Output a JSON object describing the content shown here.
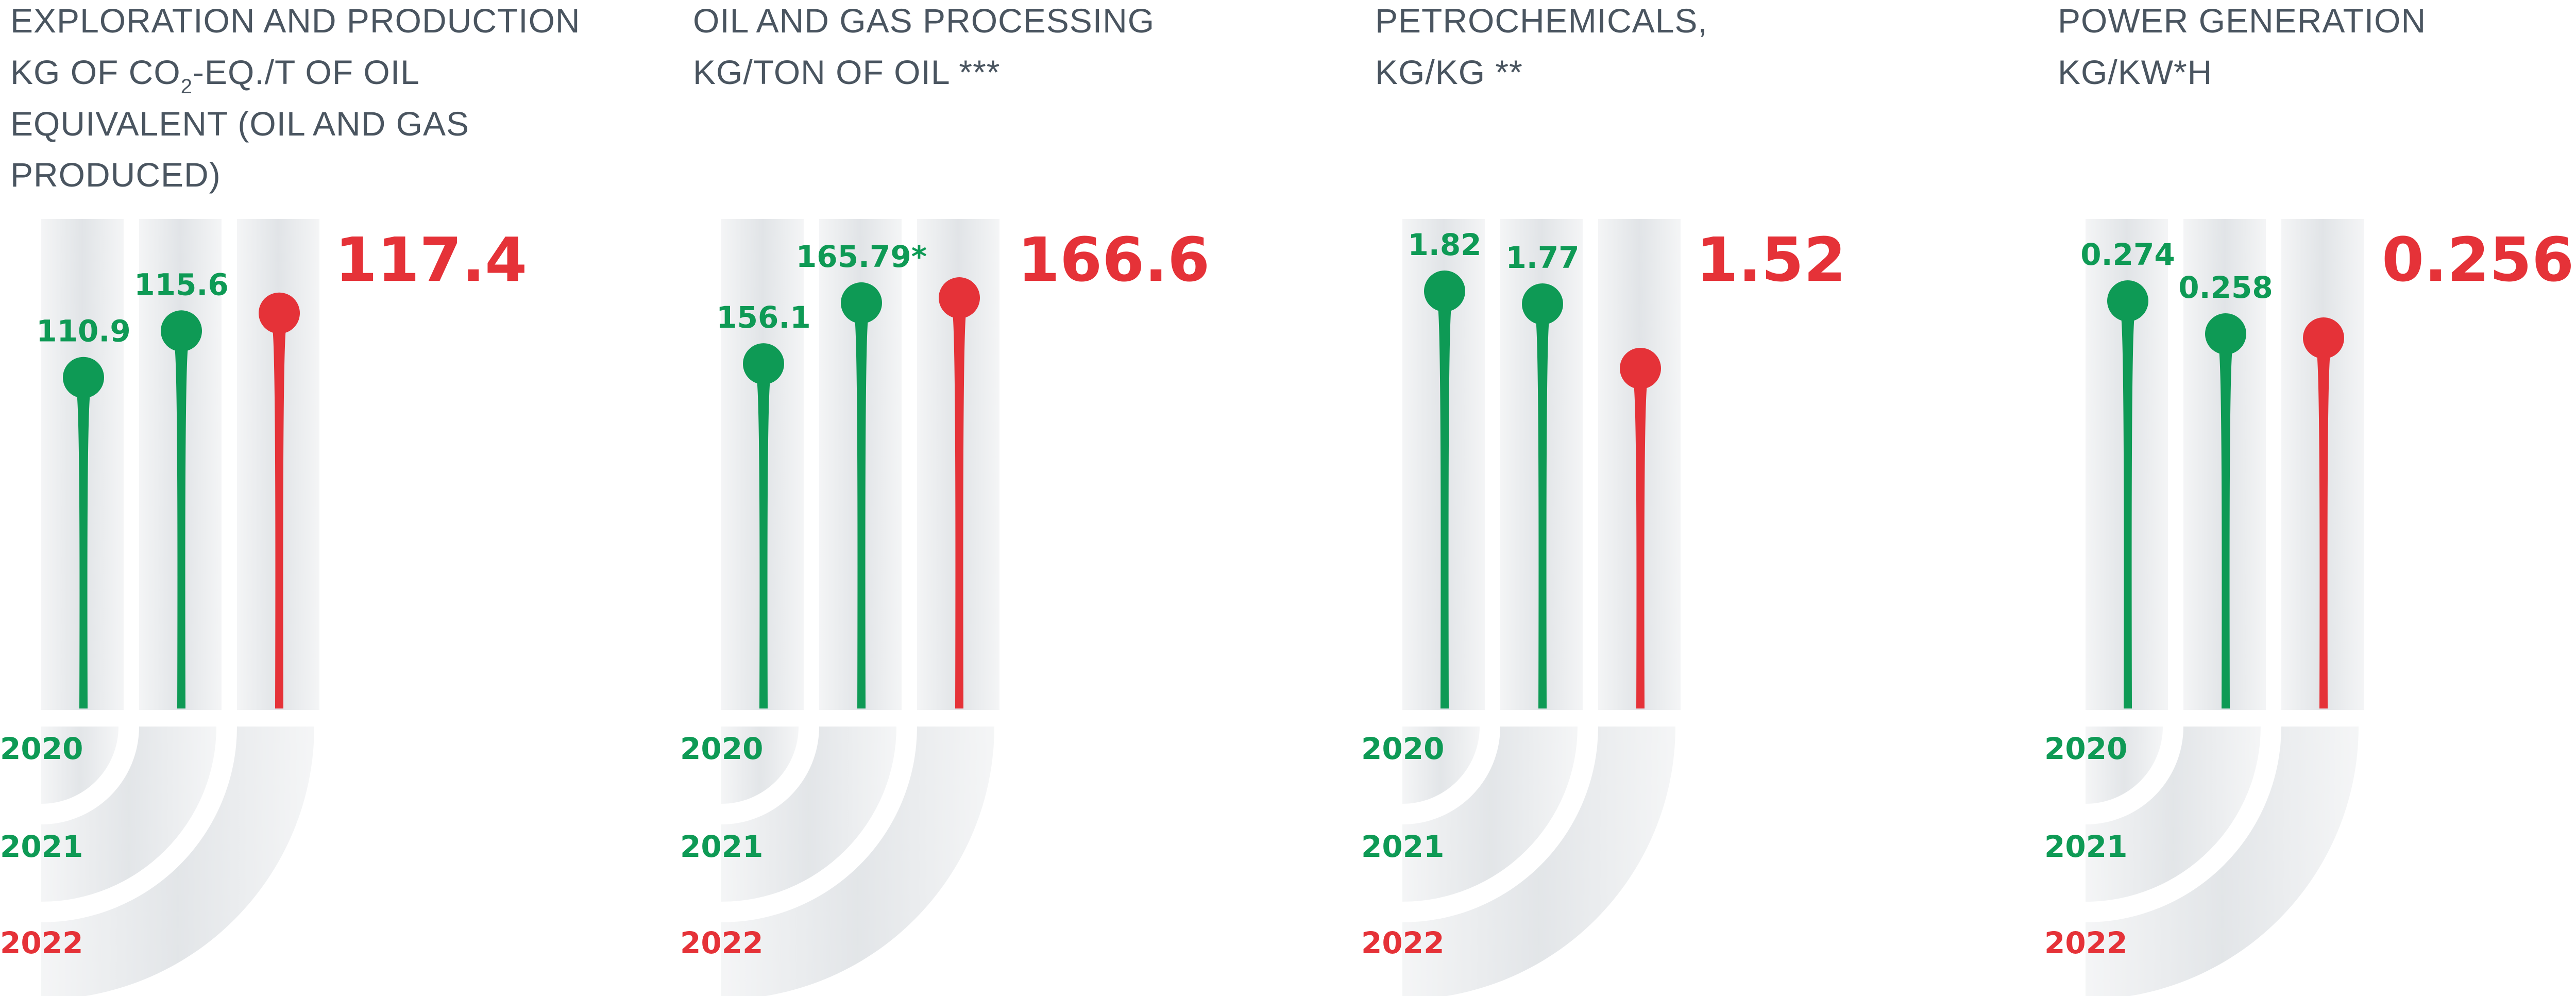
{
  "colors": {
    "green": "#0e9a55",
    "red": "#e53238",
    "title": "#4a5560",
    "track": "#e6e8ea"
  },
  "chart_data": [
    {
      "type": "lollipop",
      "title_lines": [
        "EXPLORATION AND PRODUCTION",
        "KG OF CO",
        "EQUIVALENT (OIL AND GAS",
        "PRODUCED)"
      ],
      "title_subscript": "2",
      "title_line2_tail": "-EQ./T OF OIL",
      "categories": [
        "2020",
        "2021",
        "2022"
      ],
      "values": [
        110.9,
        115.6,
        117.4
      ],
      "labels": [
        "110.9",
        "115.6",
        "117.4"
      ],
      "highlight": "117.4",
      "range": [
        97,
        123
      ]
    },
    {
      "type": "lollipop",
      "title_lines": [
        "OIL AND GAS PROCESSING",
        "KG/TON OF OIL ***"
      ],
      "categories": [
        "2020",
        "2021",
        "2022"
      ],
      "values": [
        156.1,
        165.79,
        166.6
      ],
      "labels": [
        "156.1",
        "165.79*",
        "166.6"
      ],
      "highlight": "166.6",
      "range": [
        132,
        173
      ]
    },
    {
      "type": "lollipop",
      "title_lines": [
        "PETROCHEMICALS,",
        "KG/KG **"
      ],
      "categories": [
        "2020",
        "2021",
        "2022"
      ],
      "values": [
        1.82,
        1.77,
        1.52
      ],
      "labels": [
        "1.82",
        "1.77",
        "1.52"
      ],
      "highlight": "1.52",
      "range": [
        0.95,
        1.95
      ]
    },
    {
      "type": "lollipop",
      "title_lines": [
        "POWER GENERATION",
        " KG/KW*H"
      ],
      "categories": [
        "2020",
        "2021",
        "2022"
      ],
      "values": [
        0.274,
        0.258,
        0.256
      ],
      "labels": [
        "0.274",
        "0.258",
        "0.256"
      ],
      "highlight": "0.256",
      "range": [
        0.17,
        0.295
      ]
    }
  ]
}
